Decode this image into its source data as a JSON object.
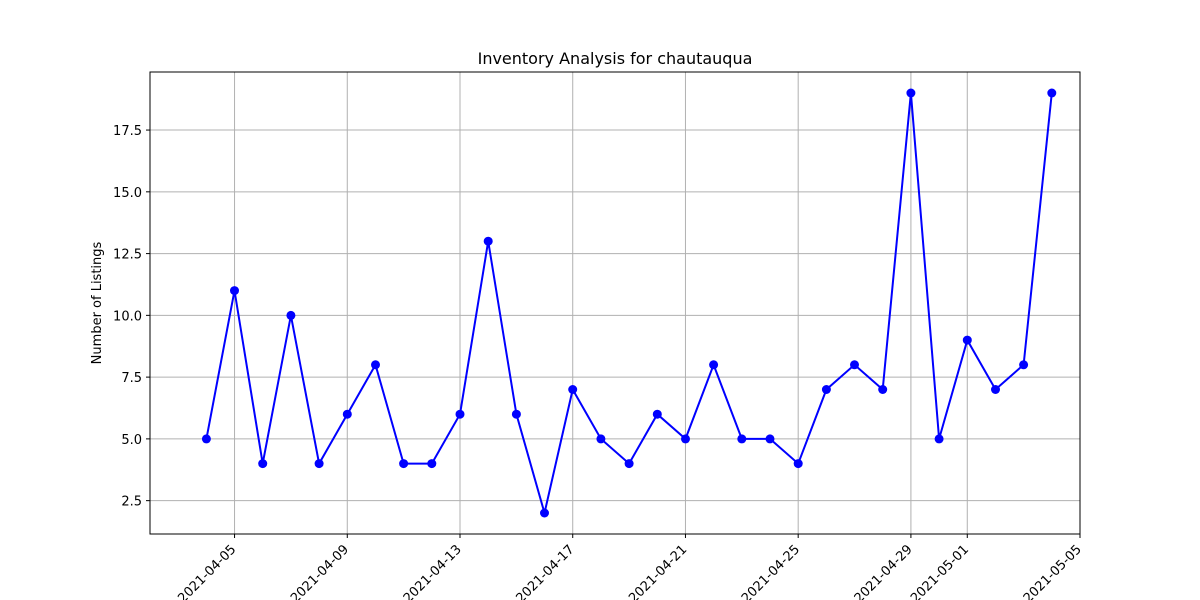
{
  "chart_data": {
    "type": "line",
    "title": "Inventory Analysis for chautauqua",
    "xlabel": "",
    "ylabel": "Number of Listings",
    "x_type": "date",
    "xlim": [
      "2021-04-02",
      "2021-05-05"
    ],
    "ylim": [
      1.15,
      19.85
    ],
    "x_ticks": [
      "2021-04-05",
      "2021-04-09",
      "2021-04-13",
      "2021-04-17",
      "2021-04-21",
      "2021-04-25",
      "2021-04-29",
      "2021-05-01",
      "2021-05-05"
    ],
    "y_ticks": [
      2.5,
      5.0,
      7.5,
      10.0,
      12.5,
      15.0,
      17.5
    ],
    "grid": true,
    "color": "#0000ff",
    "marker": "circle",
    "series": [
      {
        "x": [
          "2021-04-04",
          "2021-04-05",
          "2021-04-06",
          "2021-04-07",
          "2021-04-08",
          "2021-04-09",
          "2021-04-10",
          "2021-04-11",
          "2021-04-12",
          "2021-04-13",
          "2021-04-14",
          "2021-04-15",
          "2021-04-16",
          "2021-04-17",
          "2021-04-18",
          "2021-04-19",
          "2021-04-20",
          "2021-04-21",
          "2021-04-22",
          "2021-04-23",
          "2021-04-24",
          "2021-04-25",
          "2021-04-26",
          "2021-04-27",
          "2021-04-28",
          "2021-04-29",
          "2021-04-30",
          "2021-05-01",
          "2021-05-02",
          "2021-05-03",
          "2021-05-04"
        ],
        "values": [
          5,
          11,
          4,
          10,
          4,
          6,
          8,
          4,
          4,
          6,
          13,
          6,
          2,
          7,
          5,
          4,
          6,
          5,
          8,
          5,
          5,
          4,
          7,
          8,
          7,
          19,
          5,
          9,
          7,
          8,
          19
        ]
      }
    ]
  }
}
